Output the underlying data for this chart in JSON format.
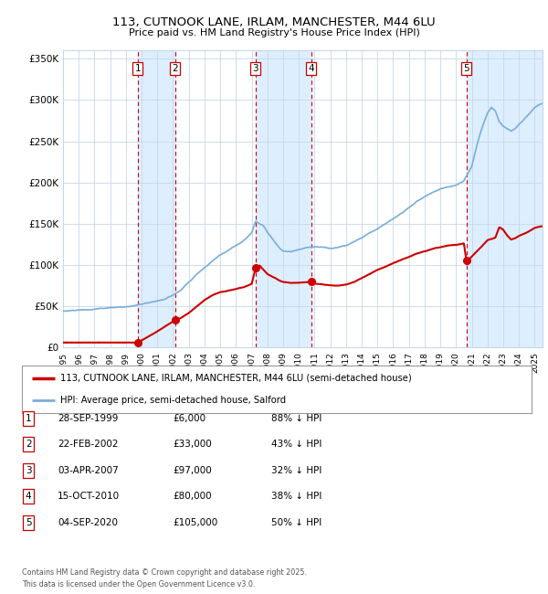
{
  "title": "113, CUTNOOK LANE, IRLAM, MANCHESTER, M44 6LU",
  "subtitle": "Price paid vs. HM Land Registry's House Price Index (HPI)",
  "ylabel_ticks": [
    "£0",
    "£50K",
    "£100K",
    "£150K",
    "£200K",
    "£250K",
    "£300K",
    "£350K"
  ],
  "ytick_values": [
    0,
    50000,
    100000,
    150000,
    200000,
    250000,
    300000,
    350000
  ],
  "ylim": [
    0,
    360000
  ],
  "xlim_start": 1995.0,
  "xlim_end": 2025.5,
  "sale_events": [
    {
      "num": 1,
      "date_str": "28-SEP-1999",
      "year": 1999.75,
      "price": 6000,
      "pct": "88%"
    },
    {
      "num": 2,
      "date_str": "22-FEB-2002",
      "year": 2002.13,
      "price": 33000,
      "pct": "43%"
    },
    {
      "num": 3,
      "date_str": "03-APR-2007",
      "year": 2007.25,
      "price": 97000,
      "pct": "32%"
    },
    {
      "num": 4,
      "date_str": "15-OCT-2010",
      "year": 2010.79,
      "price": 80000,
      "pct": "38%"
    },
    {
      "num": 5,
      "date_str": "04-SEP-2020",
      "year": 2020.67,
      "price": 105000,
      "pct": "50%"
    }
  ],
  "legend_label_red": "113, CUTNOOK LANE, IRLAM, MANCHESTER, M44 6LU (semi-detached house)",
  "legend_label_blue": "HPI: Average price, semi-detached house, Salford",
  "footer": "Contains HM Land Registry data © Crown copyright and database right 2025.\nThis data is licensed under the Open Government Licence v3.0.",
  "red_color": "#cc0000",
  "blue_color": "#7aadda",
  "shade_color": "#ddeeff",
  "grid_color": "#c8d8e8",
  "bg_color": "#ffffff",
  "table_rows": [
    {
      "num": 1,
      "date": "28-SEP-1999",
      "price": "£6,000",
      "pct": "88% ↓ HPI"
    },
    {
      "num": 2,
      "date": "22-FEB-2002",
      "price": "£33,000",
      "pct": "43% ↓ HPI"
    },
    {
      "num": 3,
      "date": "03-APR-2007",
      "price": "£97,000",
      "pct": "32% ↓ HPI"
    },
    {
      "num": 4,
      "date": "15-OCT-2010",
      "price": "£80,000",
      "pct": "38% ↓ HPI"
    },
    {
      "num": 5,
      "date": "04-SEP-2020",
      "price": "£105,000",
      "pct": "50% ↓ HPI"
    }
  ],
  "hpi_anchors": [
    [
      1995.0,
      44000
    ],
    [
      1996.0,
      44500
    ],
    [
      1997.0,
      45500
    ],
    [
      1998.0,
      47000
    ],
    [
      1999.0,
      48500
    ],
    [
      1999.5,
      49500
    ],
    [
      2000.0,
      51000
    ],
    [
      2000.5,
      52500
    ],
    [
      2001.0,
      54500
    ],
    [
      2001.5,
      57000
    ],
    [
      2002.0,
      62000
    ],
    [
      2002.5,
      68000
    ],
    [
      2003.0,
      78000
    ],
    [
      2003.5,
      88000
    ],
    [
      2004.0,
      96000
    ],
    [
      2004.5,
      103000
    ],
    [
      2005.0,
      110000
    ],
    [
      2005.5,
      116000
    ],
    [
      2006.0,
      122000
    ],
    [
      2006.5,
      128000
    ],
    [
      2007.0,
      138000
    ],
    [
      2007.25,
      152000
    ],
    [
      2007.75,
      148000
    ],
    [
      2008.0,
      140000
    ],
    [
      2008.5,
      128000
    ],
    [
      2008.75,
      122000
    ],
    [
      2009.0,
      118000
    ],
    [
      2009.5,
      117000
    ],
    [
      2010.0,
      120000
    ],
    [
      2010.5,
      122000
    ],
    [
      2011.0,
      124000
    ],
    [
      2011.5,
      123000
    ],
    [
      2012.0,
      121000
    ],
    [
      2012.5,
      122000
    ],
    [
      2013.0,
      124000
    ],
    [
      2013.5,
      128000
    ],
    [
      2014.0,
      133000
    ],
    [
      2014.5,
      138000
    ],
    [
      2015.0,
      144000
    ],
    [
      2015.5,
      150000
    ],
    [
      2016.0,
      157000
    ],
    [
      2016.5,
      163000
    ],
    [
      2017.0,
      170000
    ],
    [
      2017.5,
      177000
    ],
    [
      2018.0,
      182000
    ],
    [
      2018.5,
      187000
    ],
    [
      2019.0,
      191000
    ],
    [
      2019.5,
      194000
    ],
    [
      2020.0,
      196000
    ],
    [
      2020.5,
      202000
    ],
    [
      2021.0,
      220000
    ],
    [
      2021.25,
      240000
    ],
    [
      2021.5,
      258000
    ],
    [
      2021.75,
      272000
    ],
    [
      2022.0,
      285000
    ],
    [
      2022.25,
      292000
    ],
    [
      2022.5,
      288000
    ],
    [
      2022.75,
      275000
    ],
    [
      2023.0,
      270000
    ],
    [
      2023.25,
      268000
    ],
    [
      2023.5,
      265000
    ],
    [
      2023.75,
      268000
    ],
    [
      2024.0,
      273000
    ],
    [
      2024.25,
      278000
    ],
    [
      2024.5,
      283000
    ],
    [
      2024.75,
      288000
    ],
    [
      2025.0,
      293000
    ],
    [
      2025.4,
      298000
    ]
  ],
  "price_anchors": [
    [
      1995.0,
      6000
    ],
    [
      1999.75,
      6000
    ],
    [
      1999.76,
      6000
    ],
    [
      2002.13,
      33000
    ],
    [
      2002.14,
      33000
    ],
    [
      2002.5,
      36000
    ],
    [
      2003.0,
      42000
    ],
    [
      2003.5,
      50000
    ],
    [
      2004.0,
      58000
    ],
    [
      2004.5,
      64000
    ],
    [
      2005.0,
      68000
    ],
    [
      2005.5,
      70000
    ],
    [
      2006.0,
      72000
    ],
    [
      2006.5,
      74000
    ],
    [
      2007.0,
      78000
    ],
    [
      2007.25,
      97000
    ],
    [
      2007.5,
      100000
    ],
    [
      2007.75,
      95000
    ],
    [
      2008.0,
      90000
    ],
    [
      2008.5,
      85000
    ],
    [
      2008.75,
      82000
    ],
    [
      2009.0,
      80000
    ],
    [
      2009.5,
      79000
    ],
    [
      2010.0,
      79500
    ],
    [
      2010.5,
      80000
    ],
    [
      2010.79,
      80000
    ],
    [
      2010.8,
      80000
    ],
    [
      2011.0,
      78500
    ],
    [
      2011.5,
      77500
    ],
    [
      2012.0,
      76500
    ],
    [
      2012.5,
      76000
    ],
    [
      2013.0,
      77000
    ],
    [
      2013.5,
      80000
    ],
    [
      2014.0,
      85000
    ],
    [
      2014.5,
      90000
    ],
    [
      2015.0,
      95000
    ],
    [
      2015.5,
      99000
    ],
    [
      2016.0,
      103000
    ],
    [
      2016.5,
      107000
    ],
    [
      2017.0,
      111000
    ],
    [
      2017.5,
      115000
    ],
    [
      2018.0,
      118000
    ],
    [
      2018.5,
      121000
    ],
    [
      2019.0,
      123000
    ],
    [
      2019.5,
      125000
    ],
    [
      2020.0,
      126000
    ],
    [
      2020.5,
      128000
    ],
    [
      2020.67,
      105000
    ],
    [
      2020.68,
      105000
    ],
    [
      2021.0,
      112000
    ],
    [
      2021.5,
      122000
    ],
    [
      2022.0,
      132000
    ],
    [
      2022.5,
      135000
    ],
    [
      2022.75,
      148000
    ],
    [
      2023.0,
      145000
    ],
    [
      2023.25,
      138000
    ],
    [
      2023.5,
      133000
    ],
    [
      2023.75,
      135000
    ],
    [
      2024.0,
      138000
    ],
    [
      2024.25,
      140000
    ],
    [
      2024.5,
      142000
    ],
    [
      2024.75,
      145000
    ],
    [
      2025.0,
      148000
    ],
    [
      2025.4,
      150000
    ]
  ]
}
